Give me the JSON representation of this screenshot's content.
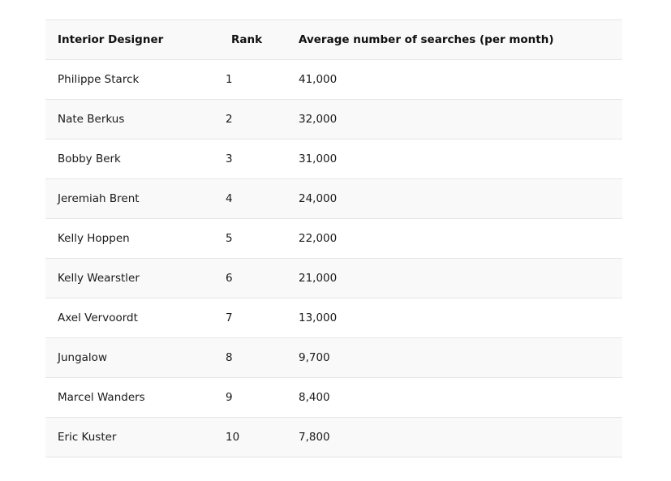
{
  "table": {
    "headers": {
      "designer": "Interior Designer",
      "rank": "Rank",
      "searches": "Average number of searches (per month)"
    },
    "rows": [
      {
        "designer": "Philippe Starck",
        "rank": "1",
        "searches": "41,000"
      },
      {
        "designer": "Nate Berkus",
        "rank": "2",
        "searches": "32,000"
      },
      {
        "designer": "Bobby Berk",
        "rank": "3",
        "searches": "31,000"
      },
      {
        "designer": "Jeremiah Brent",
        "rank": "4",
        "searches": "24,000"
      },
      {
        "designer": "Kelly Hoppen",
        "rank": "5",
        "searches": "22,000"
      },
      {
        "designer": "Kelly Wearstler",
        "rank": "6",
        "searches": "21,000"
      },
      {
        "designer": "Axel Vervoordt",
        "rank": "7",
        "searches": "13,000"
      },
      {
        "designer": "Jungalow",
        "rank": "8",
        "searches": "9,700"
      },
      {
        "designer": "Marcel Wanders",
        "rank": "9",
        "searches": "8,400"
      },
      {
        "designer": "Eric Kuster",
        "rank": "10",
        "searches": "7,800"
      }
    ]
  },
  "colors": {
    "stripe": "#f9f9f9",
    "border": "#e6e6e6",
    "text": "#1a1a1a"
  }
}
